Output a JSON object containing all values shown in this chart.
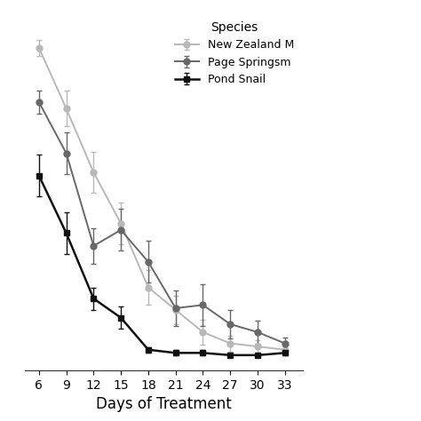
{
  "x": [
    6,
    9,
    12,
    15,
    18,
    21,
    24,
    27,
    30,
    33
  ],
  "series": {
    "New Zealand Mudsnail": {
      "y": [
        0.97,
        0.78,
        0.58,
        0.42,
        0.22,
        0.15,
        0.08,
        0.045,
        0.035,
        0.025
      ],
      "yerr": [
        0.025,
        0.055,
        0.065,
        0.065,
        0.055,
        0.045,
        0.04,
        0.025,
        0.02,
        0.015
      ],
      "color": "#b8b8b8",
      "marker": "o",
      "markersize": 5,
      "linewidth": 1.4,
      "label": "New Zealand M"
    },
    "Page Springsnail": {
      "y": [
        0.8,
        0.64,
        0.35,
        0.4,
        0.3,
        0.155,
        0.165,
        0.105,
        0.08,
        0.045
      ],
      "yerr": [
        0.035,
        0.065,
        0.055,
        0.065,
        0.065,
        0.055,
        0.065,
        0.045,
        0.035,
        0.018
      ],
      "color": "#686868",
      "marker": "o",
      "markersize": 5,
      "linewidth": 1.4,
      "label": "Page Springsm"
    },
    "Pond Snail": {
      "y": [
        0.57,
        0.39,
        0.185,
        0.125,
        0.025,
        0.015,
        0.015,
        0.008,
        0.008,
        0.015
      ],
      "yerr": [
        0.065,
        0.065,
        0.035,
        0.035,
        0.008,
        0.008,
        0.008,
        0.005,
        0.005,
        0.008
      ],
      "color": "#111111",
      "marker": "s",
      "markersize": 5,
      "linewidth": 1.8,
      "label": "Pond Snail"
    }
  },
  "xlabel": "Days of Treatment",
  "legend_title": "Species",
  "xlim": [
    4.5,
    35.0
  ],
  "ylim": [
    -0.04,
    1.08
  ],
  "xticks": [
    6,
    9,
    12,
    15,
    18,
    21,
    24,
    27,
    30,
    33
  ],
  "background_color": "#ffffff",
  "capsize": 2.5,
  "figsize": [
    4.74,
    4.74
  ],
  "dpi": 100
}
